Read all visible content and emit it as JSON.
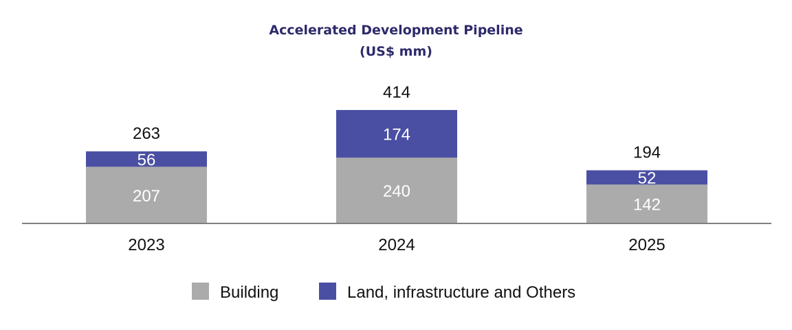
{
  "chart_data": {
    "type": "bar",
    "stacked": true,
    "title": "Accelerated Development Pipeline",
    "subtitle": "(US$ mm)",
    "categories": [
      "2023",
      "2024",
      "2025"
    ],
    "series": [
      {
        "name": "Building",
        "values": [
          207,
          240,
          142
        ],
        "color": "#ababab"
      },
      {
        "name": "Land, infrastructure and Others",
        "values": [
          56,
          174,
          52
        ],
        "color": "#4a4fa3"
      }
    ],
    "totals": [
      "263",
      "414",
      "194"
    ],
    "segment_labels": [
      [
        "207",
        "240",
        "142"
      ],
      [
        "56",
        "174",
        "52"
      ]
    ],
    "ylim": [
      0,
      414
    ],
    "grid": false,
    "legend_position": "bottom"
  },
  "colors": {
    "title": "#2e2a6b",
    "axis": "#7f7f7f",
    "text": "#111111",
    "segment_text": "#ffffff"
  }
}
